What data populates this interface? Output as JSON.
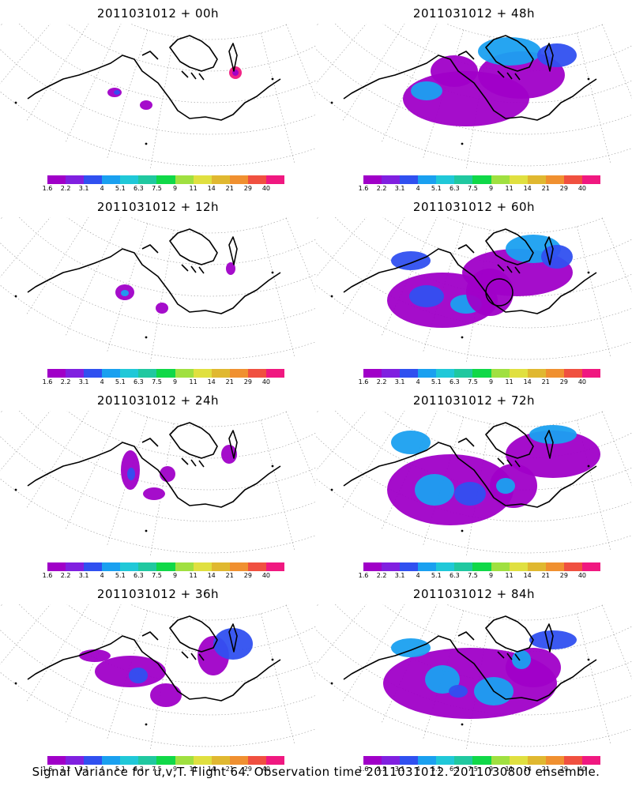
{
  "footer": "Signal Variance for u,v,T. Flight 64. Observation time 2011031012. 2011030800 ensemble.",
  "colorbar": {
    "labels": [
      "1.6",
      "2.2",
      "3.1",
      "4",
      "5.1",
      "6.3",
      "7.5",
      "9",
      "11",
      "14",
      "21",
      "29",
      "40"
    ],
    "colors": [
      "#a000c8",
      "#8020e0",
      "#3050f0",
      "#1aa0f0",
      "#20c8d8",
      "#20c8a0",
      "#10d848",
      "#a0e040",
      "#e0e040",
      "#e0b830",
      "#f09030",
      "#f05040",
      "#f01880"
    ]
  },
  "chart_data": [
    {
      "type": "heatmap",
      "title": "2011031012 + 00h",
      "lead_hours": 0,
      "max_value_approx": 40
    },
    {
      "type": "heatmap",
      "title": "2011031012 + 48h",
      "lead_hours": 48,
      "max_value_approx": 4
    },
    {
      "type": "heatmap",
      "title": "2011031012 + 12h",
      "lead_hours": 12,
      "max_value_approx": 3.1
    },
    {
      "type": "heatmap",
      "title": "2011031012 + 60h",
      "lead_hours": 60,
      "max_value_approx": 4
    },
    {
      "type": "heatmap",
      "title": "2011031012 + 24h",
      "lead_hours": 24,
      "max_value_approx": 3.1
    },
    {
      "type": "heatmap",
      "title": "2011031012 + 72h",
      "lead_hours": 72,
      "max_value_approx": 5.1
    },
    {
      "type": "heatmap",
      "title": "2011031012 + 36h",
      "lead_hours": 36,
      "max_value_approx": 3.1
    },
    {
      "type": "heatmap",
      "title": "2011031012 + 84h",
      "lead_hours": 84,
      "max_value_approx": 5.1
    }
  ]
}
